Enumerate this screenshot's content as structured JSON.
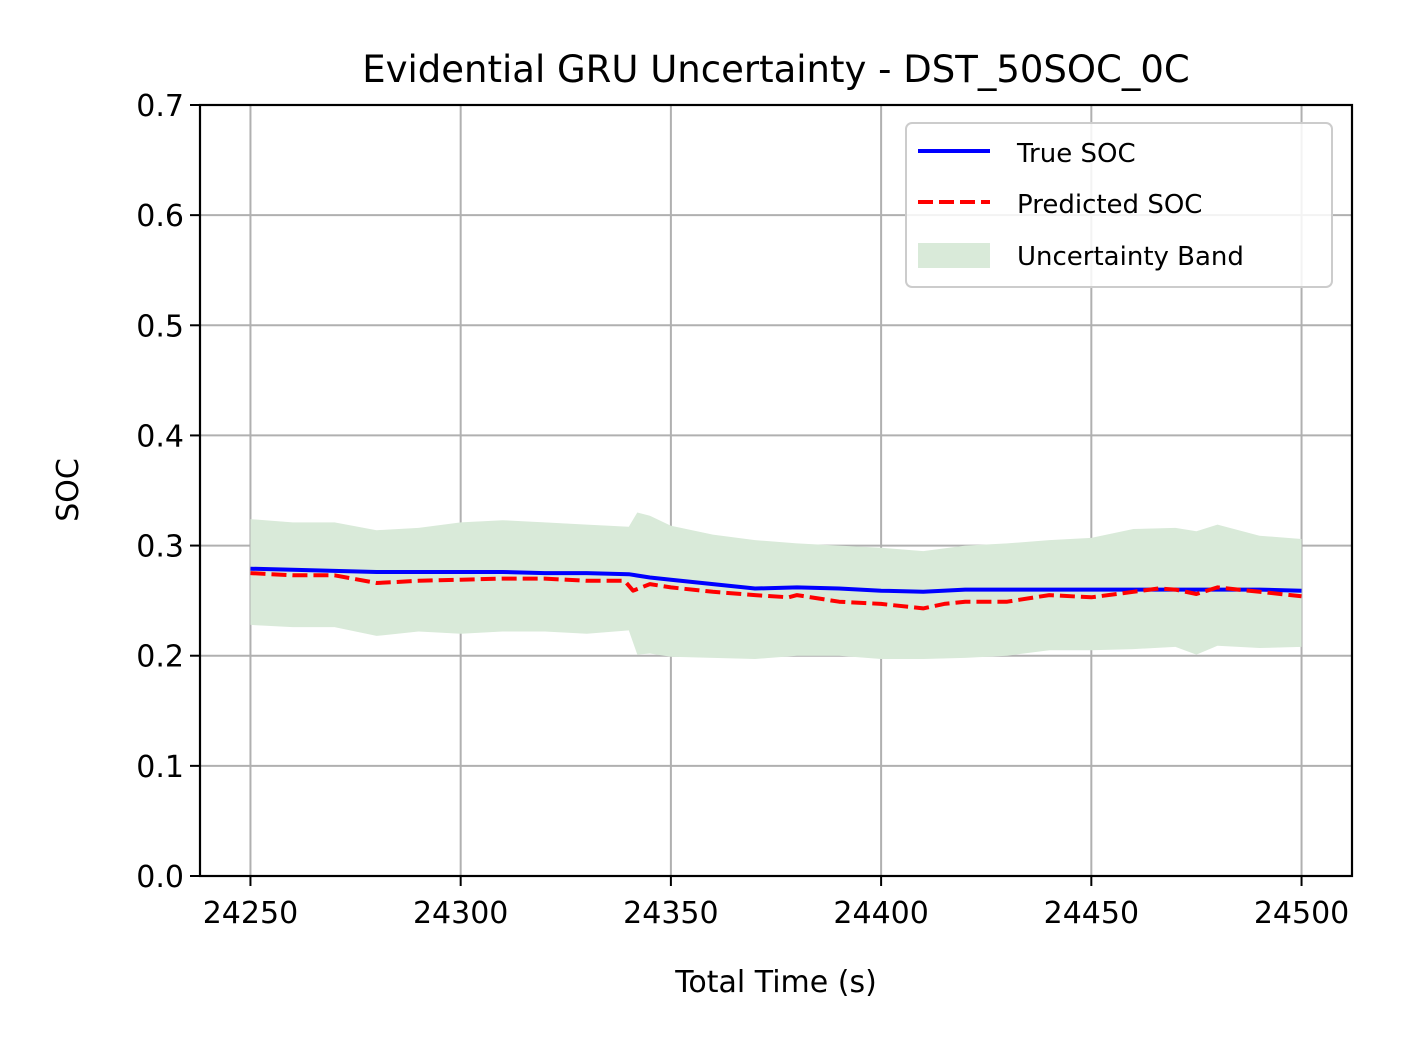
{
  "chart_data": {
    "type": "line",
    "title": "Evidential GRU Uncertainty - DST_50SOC_0C",
    "xlabel": "Total Time (s)",
    "ylabel": "SOC",
    "xlim": [
      24238,
      24512
    ],
    "ylim": [
      0.0,
      0.7
    ],
    "xticks": [
      24250,
      24300,
      24350,
      24400,
      24450,
      24500
    ],
    "yticks": [
      0.0,
      0.1,
      0.2,
      0.3,
      0.4,
      0.5,
      0.6,
      0.7
    ],
    "xtick_labels": [
      "24250",
      "24300",
      "24350",
      "24400",
      "24450",
      "24500"
    ],
    "ytick_labels": [
      "0.0",
      "0.1",
      "0.2",
      "0.3",
      "0.4",
      "0.5",
      "0.6",
      "0.7"
    ],
    "grid": true,
    "legend_position": "top-right",
    "colors": {
      "true_soc": "#0000ff",
      "predicted_soc": "#ff0000",
      "band": "#d9ead9",
      "grid": "#b0b0b0"
    },
    "legend": [
      "True SOC",
      "Predicted SOC",
      "Uncertainty Band"
    ],
    "series": [
      {
        "name": "True SOC",
        "style": "solid",
        "x": [
          24250,
          24260,
          24270,
          24280,
          24290,
          24300,
          24310,
          24320,
          24330,
          24340,
          24345,
          24350,
          24360,
          24370,
          24380,
          24390,
          24400,
          24410,
          24420,
          24430,
          24440,
          24450,
          24460,
          24470,
          24480,
          24490,
          24500
        ],
        "y": [
          0.279,
          0.278,
          0.277,
          0.276,
          0.276,
          0.276,
          0.276,
          0.275,
          0.275,
          0.274,
          0.271,
          0.269,
          0.265,
          0.261,
          0.262,
          0.261,
          0.259,
          0.258,
          0.26,
          0.26,
          0.26,
          0.26,
          0.26,
          0.26,
          0.26,
          0.26,
          0.259
        ]
      },
      {
        "name": "Predicted SOC",
        "style": "dashed",
        "x": [
          24250,
          24260,
          24270,
          24280,
          24290,
          24300,
          24310,
          24320,
          24330,
          24339,
          24341,
          24345,
          24350,
          24360,
          24370,
          24378,
          24380,
          24390,
          24400,
          24410,
          24415,
          24420,
          24430,
          24440,
          24450,
          24460,
          24466,
          24470,
          24475,
          24480,
          24490,
          24500
        ],
        "y": [
          0.275,
          0.273,
          0.273,
          0.266,
          0.268,
          0.269,
          0.27,
          0.27,
          0.268,
          0.268,
          0.259,
          0.265,
          0.262,
          0.258,
          0.255,
          0.253,
          0.255,
          0.249,
          0.247,
          0.243,
          0.247,
          0.249,
          0.249,
          0.255,
          0.253,
          0.258,
          0.261,
          0.26,
          0.256,
          0.262,
          0.258,
          0.254
        ]
      }
    ],
    "uncertainty_band": {
      "name": "Uncertainty Band",
      "x": [
        24250,
        24260,
        24270,
        24280,
        24290,
        24300,
        24310,
        24320,
        24330,
        24340,
        24342,
        24345,
        24350,
        24360,
        24370,
        24380,
        24390,
        24400,
        24410,
        24420,
        24430,
        24440,
        24450,
        24460,
        24470,
        24475,
        24480,
        24490,
        24500
      ],
      "lower": [
        0.228,
        0.226,
        0.226,
        0.218,
        0.222,
        0.22,
        0.222,
        0.222,
        0.22,
        0.223,
        0.201,
        0.202,
        0.199,
        0.198,
        0.197,
        0.2,
        0.2,
        0.197,
        0.197,
        0.198,
        0.2,
        0.205,
        0.205,
        0.206,
        0.208,
        0.201,
        0.209,
        0.207,
        0.208
      ],
      "upper": [
        0.324,
        0.321,
        0.321,
        0.314,
        0.316,
        0.321,
        0.323,
        0.321,
        0.319,
        0.317,
        0.33,
        0.327,
        0.318,
        0.31,
        0.305,
        0.302,
        0.3,
        0.298,
        0.295,
        0.3,
        0.302,
        0.305,
        0.307,
        0.315,
        0.316,
        0.313,
        0.319,
        0.309,
        0.306
      ]
    }
  }
}
